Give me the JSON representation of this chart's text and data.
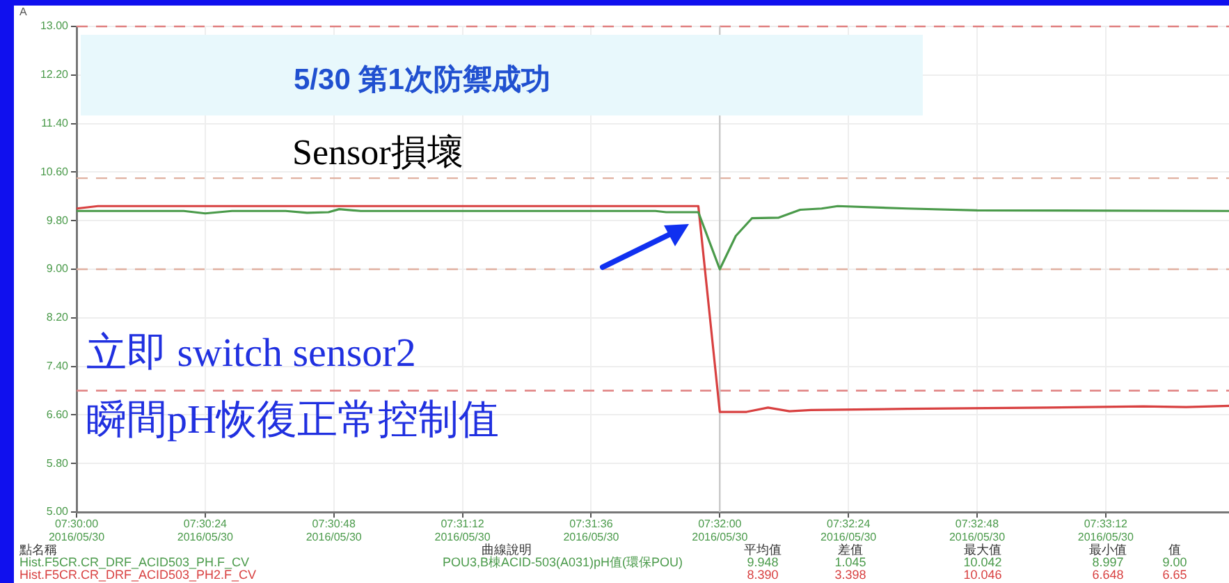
{
  "chart_data": {
    "type": "line",
    "title": "5/30 第1次防禦成功",
    "subtitle": "Sensor損壞",
    "ylabel": "A",
    "annotations": [
      "立即 switch sensor2",
      "瞬間pH恢復正常控制值",
      "曲線說明",
      "POU3,B棟ACID-503(A031)pH值(環保POU)",
      "平均值",
      "9.948",
      "8.390",
      "差值",
      "1.045",
      "3.398",
      "最大值",
      "10.042",
      "10.046",
      "最小值",
      "8.997",
      "6.648",
      "值",
      "9.00",
      "6.65"
    ],
    "legend_title": "點名稱",
    "legend": "bottom",
    "grid": true,
    "marker": "none",
    "line_style": "solid",
    "xlim": [
      "2016-05-30T07:30:00",
      "2016-05-30T07:33:35"
    ],
    "ylim": [
      5,
      13
    ],
    "xticks": [
      {
        "value": "2016-05-30T07:30:00",
        "label": "07:30:00\n2016/05/30"
      },
      {
        "value": "2016-05-30T07:30:24",
        "label": "07:30:24\n2016/05/30"
      },
      {
        "value": "2016-05-30T07:30:48",
        "label": "07:30:48\n2016/05/30"
      },
      {
        "value": "2016-05-30T07:31:12",
        "label": "07:31:12\n2016/05/30"
      },
      {
        "value": "2016-05-30T07:31:36",
        "label": "07:31:36\n2016/05/30"
      },
      {
        "value": "2016-05-30T07:32:00",
        "label": "07:32:00\n2016/05/30"
      },
      {
        "value": "2016-05-30T07:32:24",
        "label": "07:32:24\n2016/05/30"
      },
      {
        "value": "2016-05-30T07:32:48",
        "label": "07:32:48\n2016/05/30"
      },
      {
        "value": "2016-05-30T07:33:12",
        "label": "07:33:12\n2016/05/30"
      }
    ],
    "yticks": [
      {
        "value": 5,
        "label": "5.00"
      },
      {
        "value": 5.8,
        "label": "5.80"
      },
      {
        "value": 6.6,
        "label": "6.60"
      },
      {
        "value": 7.4,
        "label": "7.40"
      },
      {
        "value": 8.2,
        "label": "8.20"
      },
      {
        "value": 9,
        "label": "9.00"
      },
      {
        "value": 9.8,
        "label": "9.80"
      },
      {
        "value": 10.6,
        "label": "10.60"
      },
      {
        "value": 11.4,
        "label": "11.40"
      },
      {
        "value": 12.2,
        "label": "12.20"
      },
      {
        "value": 13,
        "label": "13.00"
      }
    ],
    "ref_lines": [
      {
        "axis": "y",
        "value": 13,
        "color": "#e08080",
        "line_style": "dashed"
      },
      {
        "axis": "y",
        "value": 10.5,
        "color": "#e0b0a0",
        "line_style": "dashed"
      },
      {
        "axis": "y",
        "value": 9,
        "color": "#e0b0a0",
        "line_style": "dashed"
      },
      {
        "axis": "y",
        "value": 7,
        "color": "#e08080",
        "line_style": "dashed"
      },
      {
        "axis": "x",
        "value": "2016-05-30T07:32:00",
        "color": "#c8c8c8",
        "line_style": "solid"
      }
    ],
    "series": [
      {
        "name": "Hist.F5CR.CR_DRF_ACID503_PH.F_CV",
        "color": "#4a9a4a",
        "x": [
          "2016-05-30T07:30:00",
          "2016-05-30T07:30:20",
          "2016-05-30T07:30:24",
          "2016-05-30T07:30:29",
          "2016-05-30T07:30:39",
          "2016-05-30T07:30:43",
          "2016-05-30T07:30:47",
          "2016-05-30T07:30:49",
          "2016-05-30T07:30:53",
          "2016-05-30T07:31:48",
          "2016-05-30T07:31:50",
          "2016-05-30T07:31:56",
          "2016-05-30T07:32:00",
          "2016-05-30T07:32:03",
          "2016-05-30T07:32:06",
          "2016-05-30T07:32:11",
          "2016-05-30T07:32:15",
          "2016-05-30T07:32:19",
          "2016-05-30T07:32:22",
          "2016-05-30T07:32:35",
          "2016-05-30T07:32:48",
          "2016-05-30T07:33:35"
        ],
        "values": [
          9.96,
          9.96,
          9.92,
          9.96,
          9.96,
          9.93,
          9.94,
          9.99,
          9.96,
          9.96,
          9.94,
          9.94,
          9.0,
          9.55,
          9.84,
          9.85,
          9.98,
          10.0,
          10.04,
          10.0,
          9.97,
          9.96
        ]
      },
      {
        "name": "Hist.F5CR.CR_DRF_ACID503_PH2.F_CV",
        "color": "#d84040",
        "x": [
          "2016-05-30T07:30:00",
          "2016-05-30T07:30:04",
          "2016-05-30T07:31:56",
          "2016-05-30T07:32:00",
          "2016-05-30T07:32:05",
          "2016-05-30T07:32:09",
          "2016-05-30T07:32:13",
          "2016-05-30T07:32:17",
          "2016-05-30T07:32:35",
          "2016-05-30T07:33:01",
          "2016-05-30T07:33:19",
          "2016-05-30T07:33:27",
          "2016-05-30T07:33:35"
        ],
        "values": [
          10.0,
          10.04,
          10.04,
          6.65,
          6.65,
          6.72,
          6.66,
          6.68,
          6.7,
          6.72,
          6.74,
          6.73,
          6.75
        ]
      }
    ]
  }
}
